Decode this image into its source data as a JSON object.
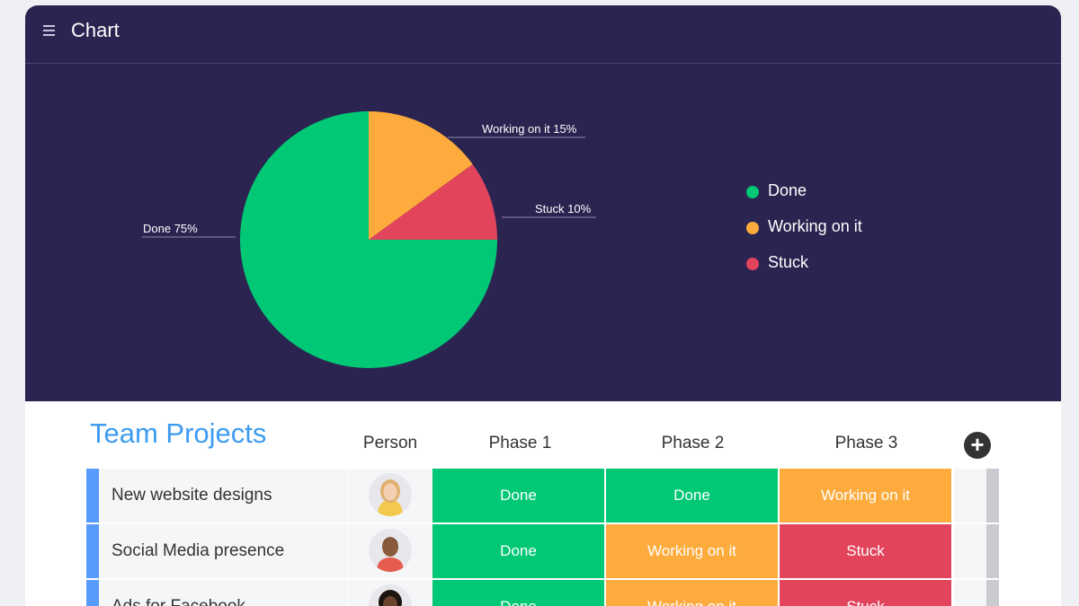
{
  "chart_panel": {
    "title": "Chart",
    "menu_icon": "hamburger-menu-icon"
  },
  "chart_data": {
    "type": "pie",
    "slices": [
      {
        "label": "Done",
        "value": 75,
        "color": "#00c875",
        "data_label": "Done 75%"
      },
      {
        "label": "Working on it",
        "value": 15,
        "color": "#fdab3d",
        "data_label": "Working on it 15%"
      },
      {
        "label": "Stuck",
        "value": 10,
        "color": "#e2445c",
        "data_label": "Stuck 10%"
      }
    ],
    "legend_placement": "right"
  },
  "legend": [
    {
      "label": "Done",
      "color": "#00c875"
    },
    {
      "label": "Working on it",
      "color": "#fdab3d"
    },
    {
      "label": "Stuck",
      "color": "#e2445c"
    }
  ],
  "board": {
    "title": "Team Projects",
    "columns": [
      "Person",
      "Phase 1",
      "Phase 2",
      "Phase 3"
    ],
    "add_column_icon": "plus-circle-icon",
    "rows": [
      {
        "name": "New website designs",
        "statuses": [
          "Done",
          "Done",
          "Working on it"
        ]
      },
      {
        "name": "Social Media presence",
        "statuses": [
          "Done",
          "Working on it",
          "Stuck"
        ]
      },
      {
        "name": "Ads for Facebook",
        "statuses": [
          "Done",
          "Working on it",
          "Stuck"
        ]
      }
    ]
  },
  "status_colors": {
    "Done": "#00c875",
    "Working on it": "#fdab3d",
    "Stuck": "#e2445c"
  }
}
